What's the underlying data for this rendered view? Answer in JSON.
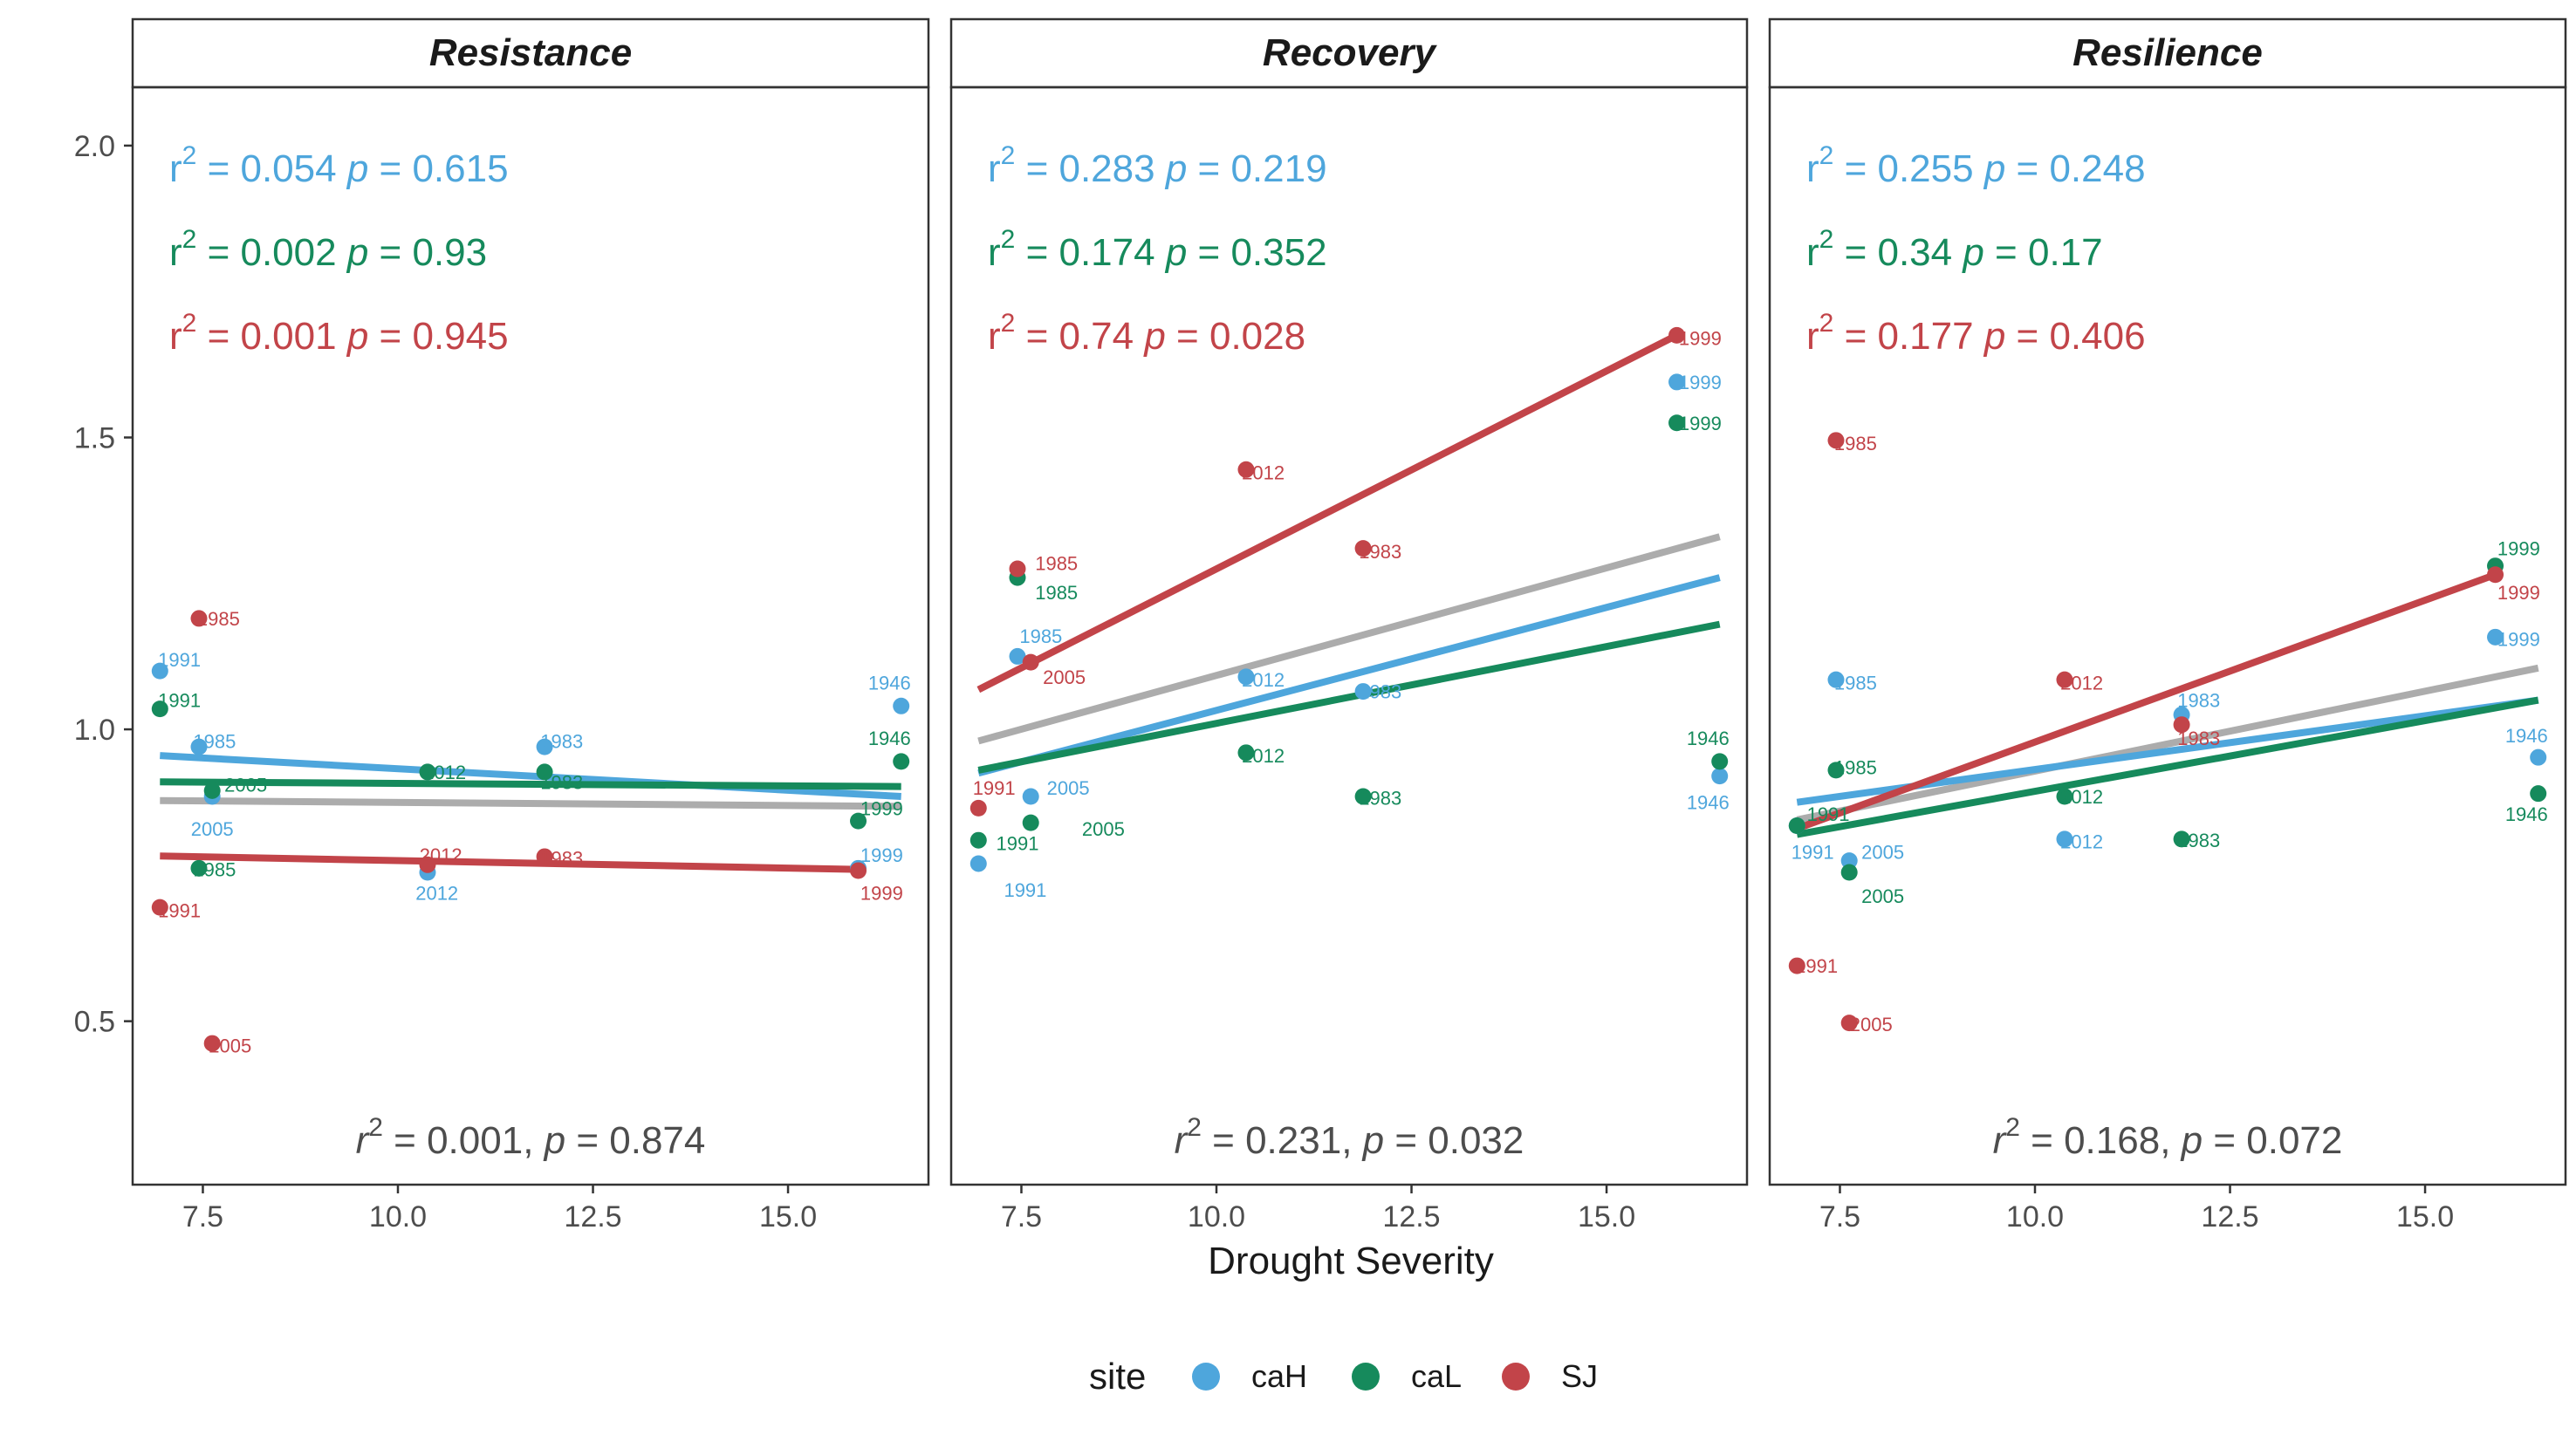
{
  "chart_data": {
    "type": "scatter",
    "xlabel": "Drought Severity",
    "ylabel": "",
    "xlim": [
      6.6,
      16.8
    ],
    "ylim": [
      0.22,
      2.1
    ],
    "x_ticks": [
      "7.5",
      "10.0",
      "12.5",
      "15.0"
    ],
    "y_ticks": [
      "0.5",
      "1.0",
      "1.5",
      "2.0"
    ],
    "grid": false,
    "legend": {
      "title": "site",
      "position": "bottom",
      "entries": [
        {
          "name": "caH",
          "color": "#4ea6dc"
        },
        {
          "name": "caL",
          "color": "#168a5c"
        },
        {
          "name": "SJ",
          "color": "#c24449"
        }
      ]
    },
    "panels": [
      {
        "title": "Resistance",
        "stats": [
          {
            "site": "caH",
            "r2": "0.054",
            "p": "0.615"
          },
          {
            "site": "caL",
            "r2": "0.002",
            "p": "0.93"
          },
          {
            "site": "SJ",
            "r2": "0.001",
            "p": "0.945"
          }
        ],
        "overall": {
          "r2": "0.001",
          "p": "0.874"
        },
        "fits": [
          {
            "site": "caH",
            "color": "#4ea6dc",
            "x": [
              6.95,
              16.45
            ],
            "y": [
              0.955,
              0.885
            ]
          },
          {
            "site": "caL",
            "color": "#168a5c",
            "x": [
              6.95,
              16.45
            ],
            "y": [
              0.91,
              0.902
            ]
          },
          {
            "site": "SJ",
            "color": "#c24449",
            "x": [
              6.95,
              15.9
            ],
            "y": [
              0.783,
              0.76
            ]
          },
          {
            "site": "all",
            "color": "#acacac",
            "x": [
              6.95,
              16.45
            ],
            "y": [
              0.878,
              0.868
            ]
          }
        ],
        "points": [
          {
            "site": "caH",
            "x": 6.95,
            "y": 1.1,
            "year": "1991",
            "lx": 7.2,
            "ly": 1.12
          },
          {
            "site": "caH",
            "x": 7.45,
            "y": 0.97,
            "year": "1985",
            "lx": 7.65,
            "ly": 0.98
          },
          {
            "site": "caH",
            "x": 7.62,
            "y": 0.885,
            "year": "2005",
            "lx": 7.62,
            "ly": 0.83
          },
          {
            "site": "caH",
            "x": 10.38,
            "y": 0.755,
            "year": "2012",
            "lx": 10.5,
            "ly": 0.72
          },
          {
            "site": "caH",
            "x": 11.88,
            "y": 0.97,
            "year": "1983",
            "lx": 12.1,
            "ly": 0.98
          },
          {
            "site": "caH",
            "x": 15.9,
            "y": 0.762,
            "year": "1999",
            "lx": 16.2,
            "ly": 0.785
          },
          {
            "site": "caH",
            "x": 16.45,
            "y": 1.04,
            "year": "1946",
            "lx": 16.3,
            "ly": 1.08
          },
          {
            "site": "caL",
            "x": 6.95,
            "y": 1.035,
            "year": "1991",
            "lx": 7.2,
            "ly": 1.05
          },
          {
            "site": "caL",
            "x": 7.45,
            "y": 0.762,
            "year": "1985",
            "lx": 7.65,
            "ly": 0.76
          },
          {
            "site": "caL",
            "x": 7.62,
            "y": 0.895,
            "year": "2005",
            "lx": 8.05,
            "ly": 0.905
          },
          {
            "site": "caL",
            "x": 10.38,
            "y": 0.927,
            "year": "2012",
            "lx": 10.6,
            "ly": 0.927
          },
          {
            "site": "caL",
            "x": 11.88,
            "y": 0.927,
            "year": "1983",
            "lx": 12.1,
            "ly": 0.91
          },
          {
            "site": "caL",
            "x": 15.9,
            "y": 0.843,
            "year": "1999",
            "lx": 16.2,
            "ly": 0.865
          },
          {
            "site": "caL",
            "x": 16.45,
            "y": 0.945,
            "year": "1946",
            "lx": 16.3,
            "ly": 0.985
          },
          {
            "site": "SJ",
            "x": 6.95,
            "y": 0.695,
            "year": "1991",
            "lx": 7.2,
            "ly": 0.69
          },
          {
            "site": "SJ",
            "x": 7.45,
            "y": 1.19,
            "year": "1985",
            "lx": 7.7,
            "ly": 1.19
          },
          {
            "site": "SJ",
            "x": 7.62,
            "y": 0.462,
            "year": "2005",
            "lx": 7.85,
            "ly": 0.458
          },
          {
            "site": "SJ",
            "x": 10.38,
            "y": 0.768,
            "year": "2012",
            "lx": 10.55,
            "ly": 0.785
          },
          {
            "site": "SJ",
            "x": 11.88,
            "y": 0.782,
            "year": "1983",
            "lx": 12.1,
            "ly": 0.78
          },
          {
            "site": "SJ",
            "x": 15.9,
            "y": 0.758,
            "year": "1999",
            "lx": 16.2,
            "ly": 0.72
          }
        ]
      },
      {
        "title": "Recovery",
        "stats": [
          {
            "site": "caH",
            "r2": "0.283",
            "p": "0.219"
          },
          {
            "site": "caL",
            "r2": "0.174",
            "p": "0.352"
          },
          {
            "site": "SJ",
            "r2": "0.74",
            "p": "0.028"
          }
        ],
        "overall": {
          "r2": "0.231",
          "p": "0.032"
        },
        "fits": [
          {
            "site": "caH",
            "color": "#4ea6dc",
            "x": [
              6.95,
              16.45
            ],
            "y": [
              0.925,
              1.26
            ]
          },
          {
            "site": "caL",
            "color": "#168a5c",
            "x": [
              6.95,
              16.45
            ],
            "y": [
              0.93,
              1.18
            ]
          },
          {
            "site": "SJ",
            "color": "#c24449",
            "x": [
              6.95,
              15.9
            ],
            "y": [
              1.068,
              1.675
            ]
          },
          {
            "site": "all",
            "color": "#acacac",
            "x": [
              6.95,
              16.45
            ],
            "y": [
              0.98,
              1.33
            ]
          }
        ],
        "points": [
          {
            "site": "caH",
            "x": 6.95,
            "y": 0.77,
            "year": "1991",
            "lx": 7.55,
            "ly": 0.725
          },
          {
            "site": "caH",
            "x": 7.45,
            "y": 1.125,
            "year": "1985",
            "lx": 7.75,
            "ly": 1.16
          },
          {
            "site": "caH",
            "x": 7.62,
            "y": 0.885,
            "year": "2005",
            "lx": 8.1,
            "ly": 0.9
          },
          {
            "site": "caH",
            "x": 10.38,
            "y": 1.09,
            "year": "2012",
            "lx": 10.6,
            "ly": 1.085
          },
          {
            "site": "caH",
            "x": 11.88,
            "y": 1.065,
            "year": "1983",
            "lx": 12.1,
            "ly": 1.065
          },
          {
            "site": "caH",
            "x": 15.9,
            "y": 1.595,
            "year": "1999",
            "lx": 16.2,
            "ly": 1.595
          },
          {
            "site": "caH",
            "x": 16.45,
            "y": 0.92,
            "year": "1946",
            "lx": 16.3,
            "ly": 0.875
          },
          {
            "site": "caL",
            "x": 6.95,
            "y": 0.81,
            "year": "1991",
            "lx": 7.45,
            "ly": 0.805
          },
          {
            "site": "caL",
            "x": 7.45,
            "y": 1.26,
            "year": "1985",
            "lx": 7.95,
            "ly": 1.235
          },
          {
            "site": "caL",
            "x": 7.62,
            "y": 0.84,
            "year": "2005",
            "lx": 8.55,
            "ly": 0.83
          },
          {
            "site": "caL",
            "x": 10.38,
            "y": 0.96,
            "year": "2012",
            "lx": 10.6,
            "ly": 0.955
          },
          {
            "site": "caL",
            "x": 11.88,
            "y": 0.885,
            "year": "1983",
            "lx": 12.1,
            "ly": 0.883
          },
          {
            "site": "caL",
            "x": 15.9,
            "y": 1.525,
            "year": "1999",
            "lx": 16.2,
            "ly": 1.525
          },
          {
            "site": "caL",
            "x": 16.45,
            "y": 0.945,
            "year": "1946",
            "lx": 16.3,
            "ly": 0.985
          },
          {
            "site": "SJ",
            "x": 6.95,
            "y": 0.865,
            "year": "1991",
            "lx": 7.15,
            "ly": 0.9
          },
          {
            "site": "SJ",
            "x": 7.45,
            "y": 1.275,
            "year": "1985",
            "lx": 7.95,
            "ly": 1.285
          },
          {
            "site": "SJ",
            "x": 7.62,
            "y": 1.115,
            "year": "2005",
            "lx": 8.05,
            "ly": 1.09
          },
          {
            "site": "SJ",
            "x": 10.38,
            "y": 1.445,
            "year": "2012",
            "lx": 10.6,
            "ly": 1.44
          },
          {
            "site": "SJ",
            "x": 11.88,
            "y": 1.31,
            "year": "1983",
            "lx": 12.1,
            "ly": 1.305
          },
          {
            "site": "SJ",
            "x": 15.9,
            "y": 1.675,
            "year": "1999",
            "lx": 16.2,
            "ly": 1.67
          }
        ]
      },
      {
        "title": "Resilience",
        "stats": [
          {
            "site": "caH",
            "r2": "0.255",
            "p": "0.248"
          },
          {
            "site": "caL",
            "r2": "0.34",
            "p": "0.17"
          },
          {
            "site": "SJ",
            "r2": "0.177",
            "p": "0.406"
          }
        ],
        "overall": {
          "r2": "0.168",
          "p": "0.072"
        },
        "fits": [
          {
            "site": "caH",
            "color": "#4ea6dc",
            "x": [
              6.95,
              16.45
            ],
            "y": [
              0.875,
              1.05
            ]
          },
          {
            "site": "caL",
            "color": "#168a5c",
            "x": [
              6.95,
              16.45
            ],
            "y": [
              0.82,
              1.05
            ]
          },
          {
            "site": "SJ",
            "color": "#c24449",
            "x": [
              6.95,
              15.9
            ],
            "y": [
              0.83,
              1.265
            ]
          },
          {
            "site": "all",
            "color": "#acacac",
            "x": [
              6.95,
              16.45
            ],
            "y": [
              0.845,
              1.105
            ]
          }
        ],
        "points": [
          {
            "site": "caH",
            "x": 6.95,
            "y": 0.835,
            "year": "1991",
            "lx": 7.15,
            "ly": 0.79
          },
          {
            "site": "caH",
            "x": 7.45,
            "y": 1.085,
            "year": "1985",
            "lx": 7.7,
            "ly": 1.08
          },
          {
            "site": "caH",
            "x": 7.62,
            "y": 0.775,
            "year": "2005",
            "lx": 8.05,
            "ly": 0.79
          },
          {
            "site": "caH",
            "x": 10.38,
            "y": 0.812,
            "year": "2012",
            "lx": 10.6,
            "ly": 0.808
          },
          {
            "site": "caH",
            "x": 11.88,
            "y": 1.025,
            "year": "1983",
            "lx": 12.1,
            "ly": 1.05
          },
          {
            "site": "caH",
            "x": 15.9,
            "y": 1.158,
            "year": "1999",
            "lx": 16.2,
            "ly": 1.155
          },
          {
            "site": "caH",
            "x": 16.45,
            "y": 0.952,
            "year": "1946",
            "lx": 16.3,
            "ly": 0.99
          },
          {
            "site": "caL",
            "x": 6.95,
            "y": 0.835,
            "year": "1991",
            "lx": 7.35,
            "ly": 0.855
          },
          {
            "site": "caL",
            "x": 7.45,
            "y": 0.93,
            "year": "1985",
            "lx": 7.7,
            "ly": 0.935
          },
          {
            "site": "caL",
            "x": 7.62,
            "y": 0.755,
            "year": "2005",
            "lx": 8.05,
            "ly": 0.715
          },
          {
            "site": "caL",
            "x": 10.38,
            "y": 0.885,
            "year": "2012",
            "lx": 10.6,
            "ly": 0.885
          },
          {
            "site": "caL",
            "x": 11.88,
            "y": 0.812,
            "year": "1983",
            "lx": 12.1,
            "ly": 0.81
          },
          {
            "site": "caL",
            "x": 15.9,
            "y": 1.28,
            "year": "1999",
            "lx": 16.2,
            "ly": 1.31
          },
          {
            "site": "caL",
            "x": 16.45,
            "y": 0.89,
            "year": "1946",
            "lx": 16.3,
            "ly": 0.855
          },
          {
            "site": "SJ",
            "x": 6.95,
            "y": 0.595,
            "year": "1991",
            "lx": 7.2,
            "ly": 0.595
          },
          {
            "site": "SJ",
            "x": 7.45,
            "y": 1.495,
            "year": "1985",
            "lx": 7.7,
            "ly": 1.49
          },
          {
            "site": "SJ",
            "x": 7.62,
            "y": 0.497,
            "year": "2005",
            "lx": 7.9,
            "ly": 0.495
          },
          {
            "site": "SJ",
            "x": 10.38,
            "y": 1.085,
            "year": "2012",
            "lx": 10.6,
            "ly": 1.08
          },
          {
            "site": "SJ",
            "x": 11.88,
            "y": 1.008,
            "year": "1983",
            "lx": 12.1,
            "ly": 0.985
          },
          {
            "site": "SJ",
            "x": 15.9,
            "y": 1.265,
            "year": "1999",
            "lx": 16.2,
            "ly": 1.235
          }
        ]
      }
    ]
  }
}
